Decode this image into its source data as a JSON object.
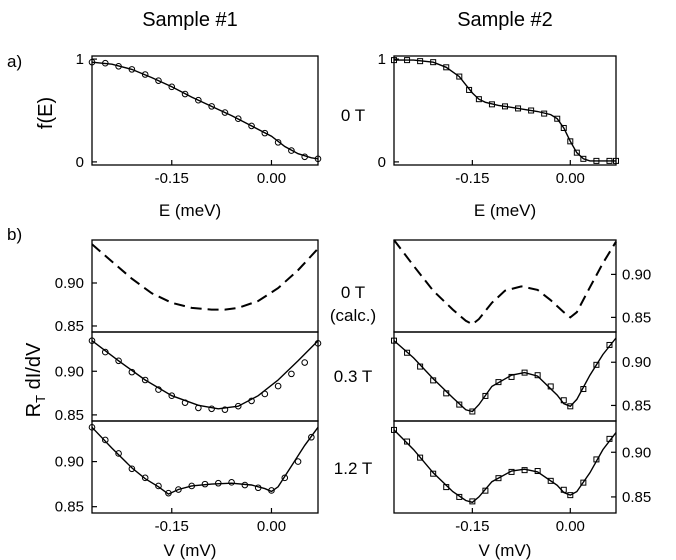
{
  "figure": {
    "column_titles": [
      "Sample #1",
      "Sample #2"
    ],
    "panel_labels": [
      "a)",
      "b)"
    ],
    "row_a_ylabel": "f(E)",
    "row_b_ylabel_main": "R",
    "row_b_ylabel_sub": "T",
    "row_b_ylabel_rest": " dI/dV",
    "x_label_a": "E (meV)",
    "x_label_b": "V (mV)",
    "field_labels": [
      "0 T",
      "0 T",
      "(calc.)",
      "0.3 T",
      "1.2 T"
    ]
  },
  "chart_data": [
    {
      "type": "line",
      "panel": "a) Sample #1",
      "xlabel": "E (meV)",
      "ylabel": "f(E)",
      "xlim": [
        -0.27,
        0.07
      ],
      "ylim": [
        -0.03,
        1.03
      ],
      "xticks": [
        -0.15,
        0.0
      ],
      "xtick_labels": [
        "-0.15",
        "0.00"
      ],
      "yticks": [
        0,
        1
      ],
      "ytick_labels": [
        "0",
        "1"
      ],
      "marker": "circle",
      "series": [
        {
          "style": "solid-line",
          "x": [
            -0.27,
            -0.24,
            -0.21,
            -0.18,
            -0.15,
            -0.12,
            -0.09,
            -0.06,
            -0.03,
            0.0,
            0.02,
            0.04,
            0.06,
            0.07
          ],
          "y": [
            0.97,
            0.95,
            0.9,
            0.82,
            0.73,
            0.63,
            0.54,
            0.45,
            0.35,
            0.25,
            0.15,
            0.08,
            0.04,
            0.03
          ]
        },
        {
          "style": "markers",
          "x": [
            -0.27,
            -0.25,
            -0.23,
            -0.21,
            -0.19,
            -0.17,
            -0.15,
            -0.13,
            -0.11,
            -0.09,
            -0.07,
            -0.05,
            -0.03,
            -0.01,
            0.01,
            0.03,
            0.05,
            0.07
          ],
          "y": [
            0.97,
            0.96,
            0.93,
            0.9,
            0.85,
            0.79,
            0.73,
            0.66,
            0.6,
            0.54,
            0.48,
            0.42,
            0.35,
            0.28,
            0.19,
            0.11,
            0.05,
            0.03
          ]
        }
      ]
    },
    {
      "type": "line",
      "panel": "a) Sample #2",
      "annotation": "0 T",
      "xlabel": "E (meV)",
      "xlim": [
        -0.27,
        0.07
      ],
      "ylim": [
        -0.03,
        1.03
      ],
      "xticks": [
        -0.15,
        0.0
      ],
      "xtick_labels": [
        "-0.15",
        "0.00"
      ],
      "yticks": [
        0,
        1
      ],
      "ytick_labels": [
        "0",
        "1"
      ],
      "marker": "square",
      "series": [
        {
          "style": "solid-line",
          "x": [
            -0.27,
            -0.24,
            -0.21,
            -0.19,
            -0.17,
            -0.16,
            -0.15,
            -0.14,
            -0.13,
            -0.11,
            -0.08,
            -0.05,
            -0.03,
            -0.02,
            -0.01,
            0.0,
            0.01,
            0.02,
            0.03,
            0.05,
            0.07
          ],
          "y": [
            0.99,
            0.99,
            0.97,
            0.92,
            0.83,
            0.75,
            0.67,
            0.61,
            0.58,
            0.55,
            0.52,
            0.49,
            0.46,
            0.42,
            0.33,
            0.2,
            0.09,
            0.03,
            0.01,
            0.01,
            0.01
          ]
        },
        {
          "style": "markers",
          "x": [
            -0.27,
            -0.25,
            -0.23,
            -0.21,
            -0.19,
            -0.17,
            -0.155,
            -0.14,
            -0.12,
            -0.1,
            -0.08,
            -0.06,
            -0.04,
            -0.02,
            -0.01,
            0.0,
            0.01,
            0.02,
            0.04,
            0.06,
            0.07
          ],
          "y": [
            0.99,
            0.99,
            0.98,
            0.97,
            0.92,
            0.83,
            0.7,
            0.61,
            0.56,
            0.54,
            0.52,
            0.5,
            0.47,
            0.42,
            0.33,
            0.2,
            0.09,
            0.03,
            0.01,
            0.01,
            0.01
          ]
        }
      ]
    },
    {
      "type": "line",
      "panel": "b) Sample #1 top",
      "ylabel": "R_T dI/dV",
      "xlim": [
        -0.27,
        0.07
      ],
      "ylim": [
        0.843,
        0.95
      ],
      "yticks": [
        0.85,
        0.9
      ],
      "ytick_labels": [
        "0.85",
        "0.90"
      ],
      "series": [
        {
          "style": "dashed-line",
          "x": [
            -0.27,
            -0.24,
            -0.21,
            -0.18,
            -0.15,
            -0.12,
            -0.09,
            -0.07,
            -0.05,
            -0.02,
            0.01,
            0.04,
            0.07
          ],
          "y": [
            0.945,
            0.925,
            0.905,
            0.888,
            0.877,
            0.871,
            0.869,
            0.869,
            0.871,
            0.879,
            0.894,
            0.915,
            0.94
          ]
        }
      ]
    },
    {
      "type": "line",
      "panel": "b) Sample #1 middle",
      "xlim": [
        -0.27,
        0.07
      ],
      "ylim": [
        0.843,
        0.945
      ],
      "yticks": [
        0.85,
        0.9
      ],
      "ytick_labels": [
        "0.85",
        "0.90"
      ],
      "marker": "circle",
      "series": [
        {
          "style": "solid-line",
          "x": [
            -0.27,
            -0.23,
            -0.19,
            -0.15,
            -0.11,
            -0.08,
            -0.05,
            -0.02,
            0.01,
            0.04,
            0.07
          ],
          "y": [
            0.935,
            0.912,
            0.89,
            0.872,
            0.861,
            0.857,
            0.86,
            0.872,
            0.89,
            0.912,
            0.935
          ]
        },
        {
          "style": "markers",
          "x": [
            -0.27,
            -0.25,
            -0.23,
            -0.21,
            -0.19,
            -0.17,
            -0.15,
            -0.13,
            -0.11,
            -0.09,
            -0.07,
            -0.05,
            -0.03,
            -0.01,
            0.01,
            0.03,
            0.05,
            0.07
          ],
          "y": [
            0.935,
            0.922,
            0.912,
            0.899,
            0.89,
            0.879,
            0.872,
            0.864,
            0.858,
            0.857,
            0.856,
            0.86,
            0.866,
            0.874,
            0.883,
            0.897,
            0.91,
            0.932
          ]
        }
      ]
    },
    {
      "type": "line",
      "panel": "b) Sample #1 bottom",
      "xlabel": "V (mV)",
      "xlim": [
        -0.27,
        0.07
      ],
      "ylim": [
        0.843,
        0.945
      ],
      "xticks": [
        -0.15,
        0.0
      ],
      "xtick_labels": [
        "-0.15",
        "0.00"
      ],
      "yticks": [
        0.85,
        0.9
      ],
      "ytick_labels": [
        "0.85",
        "0.90"
      ],
      "marker": "circle",
      "series": [
        {
          "style": "solid-line",
          "x": [
            -0.27,
            -0.24,
            -0.21,
            -0.19,
            -0.17,
            -0.155,
            -0.14,
            -0.12,
            -0.09,
            -0.06,
            -0.03,
            -0.01,
            0.0,
            0.01,
            0.03,
            0.05,
            0.07
          ],
          "y": [
            0.938,
            0.915,
            0.893,
            0.881,
            0.872,
            0.864,
            0.869,
            0.873,
            0.875,
            0.876,
            0.874,
            0.87,
            0.867,
            0.872,
            0.895,
            0.918,
            0.938
          ]
        },
        {
          "style": "markers",
          "x": [
            -0.27,
            -0.25,
            -0.23,
            -0.21,
            -0.19,
            -0.17,
            -0.155,
            -0.14,
            -0.12,
            -0.1,
            -0.08,
            -0.06,
            -0.04,
            -0.02,
            0.0,
            0.02,
            0.04,
            0.06
          ],
          "y": [
            0.938,
            0.924,
            0.909,
            0.892,
            0.882,
            0.873,
            0.865,
            0.869,
            0.873,
            0.875,
            0.876,
            0.877,
            0.874,
            0.871,
            0.868,
            0.882,
            0.9,
            0.927
          ]
        }
      ]
    },
    {
      "type": "line",
      "panel": "b) Sample #2 top",
      "annotation": "0 T (calc.)",
      "xlim": [
        -0.27,
        0.07
      ],
      "ylim": [
        0.833,
        0.94
      ],
      "yticks": [
        0.85,
        0.9
      ],
      "ytick_labels": [
        "0.85",
        "0.90"
      ],
      "series": [
        {
          "style": "dashed-line",
          "x": [
            -0.27,
            -0.24,
            -0.21,
            -0.18,
            -0.16,
            -0.15,
            -0.14,
            -0.12,
            -0.1,
            -0.075,
            -0.05,
            -0.03,
            -0.01,
            0.0,
            0.01,
            0.03,
            0.05,
            0.07
          ],
          "y": [
            0.94,
            0.91,
            0.881,
            0.859,
            0.846,
            0.842,
            0.848,
            0.867,
            0.881,
            0.886,
            0.882,
            0.87,
            0.856,
            0.85,
            0.856,
            0.885,
            0.913,
            0.938
          ]
        }
      ]
    },
    {
      "type": "line",
      "panel": "b) Sample #2 middle",
      "annotation": "0.3 T",
      "xlim": [
        -0.27,
        0.07
      ],
      "ylim": [
        0.832,
        0.935
      ],
      "yticks": [
        0.85,
        0.9
      ],
      "ytick_labels": [
        "0.85",
        "0.90"
      ],
      "marker": "square",
      "series": [
        {
          "style": "solid-line",
          "x": [
            -0.27,
            -0.24,
            -0.21,
            -0.18,
            -0.16,
            -0.15,
            -0.14,
            -0.12,
            -0.09,
            -0.07,
            -0.05,
            -0.02,
            -0.01,
            0.0,
            0.01,
            0.03,
            0.05,
            0.07
          ],
          "y": [
            0.925,
            0.905,
            0.881,
            0.859,
            0.845,
            0.843,
            0.851,
            0.872,
            0.885,
            0.888,
            0.884,
            0.862,
            0.852,
            0.849,
            0.857,
            0.885,
            0.909,
            0.928
          ]
        },
        {
          "style": "markers",
          "x": [
            -0.27,
            -0.25,
            -0.23,
            -0.21,
            -0.19,
            -0.17,
            -0.15,
            -0.13,
            -0.11,
            -0.09,
            -0.07,
            -0.05,
            -0.03,
            -0.01,
            0.0,
            0.02,
            0.04,
            0.06
          ],
          "y": [
            0.925,
            0.911,
            0.895,
            0.879,
            0.864,
            0.851,
            0.843,
            0.861,
            0.877,
            0.883,
            0.888,
            0.885,
            0.872,
            0.856,
            0.849,
            0.869,
            0.897,
            0.92
          ]
        }
      ]
    },
    {
      "type": "line",
      "panel": "b) Sample #2 bottom",
      "annotation": "1.2 T",
      "xlabel": "V (mV)",
      "xlim": [
        -0.27,
        0.07
      ],
      "ylim": [
        0.832,
        0.935
      ],
      "xticks": [
        -0.15,
        0.0
      ],
      "xtick_labels": [
        "-0.15",
        "0.00"
      ],
      "yticks": [
        0.85,
        0.9
      ],
      "ytick_labels": [
        "0.85",
        "0.90"
      ],
      "marker": "square",
      "series": [
        {
          "style": "solid-line",
          "x": [
            -0.27,
            -0.24,
            -0.21,
            -0.18,
            -0.16,
            -0.15,
            -0.14,
            -0.12,
            -0.09,
            -0.07,
            -0.05,
            -0.02,
            -0.01,
            0.0,
            0.01,
            0.03,
            0.05,
            0.07
          ],
          "y": [
            0.925,
            0.903,
            0.877,
            0.856,
            0.846,
            0.844,
            0.85,
            0.867,
            0.879,
            0.881,
            0.878,
            0.863,
            0.855,
            0.852,
            0.856,
            0.877,
            0.903,
            0.922
          ]
        },
        {
          "style": "markers",
          "x": [
            -0.27,
            -0.25,
            -0.23,
            -0.21,
            -0.19,
            -0.17,
            -0.15,
            -0.13,
            -0.11,
            -0.09,
            -0.07,
            -0.05,
            -0.03,
            -0.01,
            0.0,
            0.02,
            0.04,
            0.06
          ],
          "y": [
            0.925,
            0.912,
            0.894,
            0.876,
            0.861,
            0.85,
            0.845,
            0.857,
            0.871,
            0.878,
            0.88,
            0.879,
            0.868,
            0.858,
            0.852,
            0.866,
            0.892,
            0.915
          ]
        }
      ]
    }
  ]
}
